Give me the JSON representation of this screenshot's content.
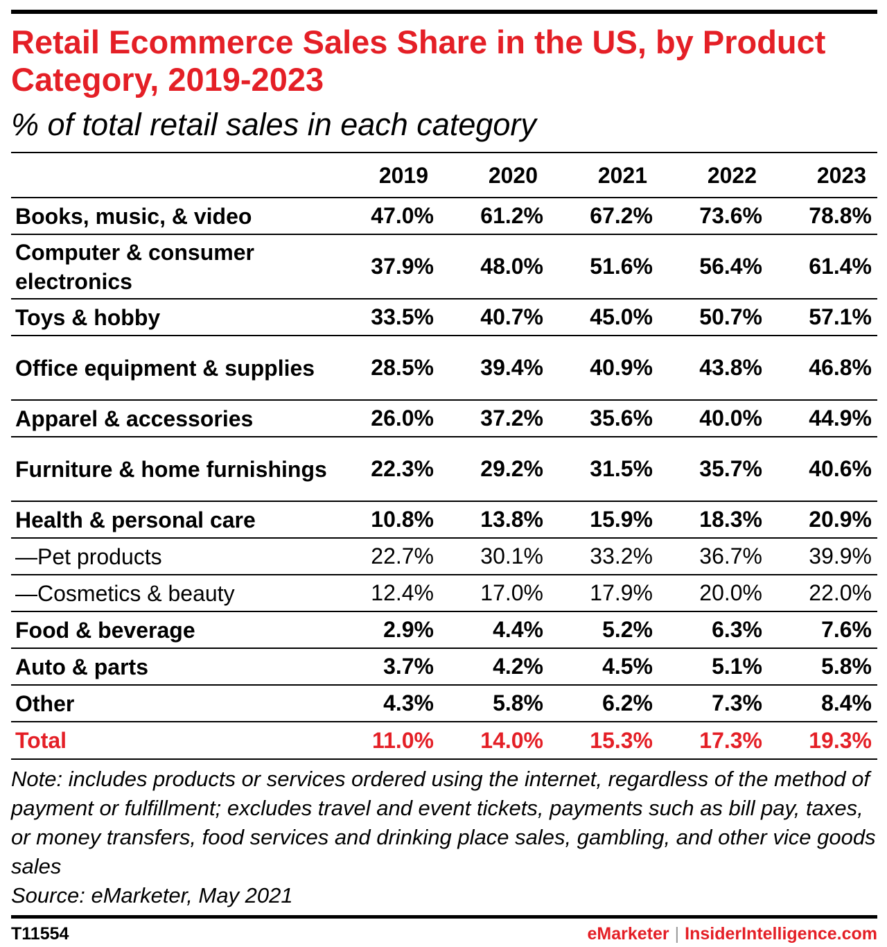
{
  "chart_data": {
    "type": "table",
    "title": "Retail Ecommerce Sales Share in the US, by Product Category, 2019-2023",
    "subtitle": "% of total retail sales in each category",
    "columns": [
      "2019",
      "2020",
      "2021",
      "2022",
      "2023"
    ],
    "rows": [
      {
        "label": "Books, music, & video",
        "values": [
          "47.0%",
          "61.2%",
          "67.2%",
          "73.6%",
          "78.8%"
        ]
      },
      {
        "label": "Computer & consumer electronics",
        "values": [
          "37.9%",
          "48.0%",
          "51.6%",
          "56.4%",
          "61.4%"
        ]
      },
      {
        "label": "Toys & hobby",
        "values": [
          "33.5%",
          "40.7%",
          "45.0%",
          "50.7%",
          "57.1%"
        ]
      },
      {
        "label": "Office equipment & supplies",
        "values": [
          "28.5%",
          "39.4%",
          "40.9%",
          "43.8%",
          "46.8%"
        ]
      },
      {
        "label": "Apparel & accessories",
        "values": [
          "26.0%",
          "37.2%",
          "35.6%",
          "40.0%",
          "44.9%"
        ]
      },
      {
        "label": "Furniture & home furnishings",
        "values": [
          "22.3%",
          "29.2%",
          "31.5%",
          "35.7%",
          "40.6%"
        ]
      },
      {
        "label": "Health & personal care",
        "values": [
          "10.8%",
          "13.8%",
          "15.9%",
          "18.3%",
          "20.9%"
        ]
      },
      {
        "label": "—Pet products",
        "values": [
          "22.7%",
          "30.1%",
          "33.2%",
          "36.7%",
          "39.9%"
        ]
      },
      {
        "label": "—Cosmetics & beauty",
        "values": [
          "12.4%",
          "17.0%",
          "17.9%",
          "20.0%",
          "22.0%"
        ]
      },
      {
        "label": "Food & beverage",
        "values": [
          "2.9%",
          "4.4%",
          "5.2%",
          "6.3%",
          "7.6%"
        ]
      },
      {
        "label": "Auto & parts",
        "values": [
          "3.7%",
          "4.2%",
          "4.5%",
          "5.1%",
          "5.8%"
        ]
      },
      {
        "label": "Other",
        "values": [
          "4.3%",
          "5.8%",
          "6.2%",
          "7.3%",
          "8.4%"
        ]
      },
      {
        "label": "Total",
        "values": [
          "11.0%",
          "14.0%",
          "15.3%",
          "17.3%",
          "19.3%"
        ]
      }
    ]
  },
  "note": "Note: includes products or services ordered using the internet, regardless of the method of payment or fulfillment; excludes travel and event tickets, payments such as bill pay, taxes, or money transfers, food services and drinking place sales, gambling, and other vice goods sales",
  "source": "Source: eMarketer, May 2021",
  "footer": {
    "chart_id": "T11554",
    "brand_left": "eMarketer",
    "separator": "|",
    "brand_right": "InsiderIntelligence.com"
  },
  "colors": {
    "accent": "#e41f26",
    "text": "#000000",
    "rule": "#000000"
  }
}
